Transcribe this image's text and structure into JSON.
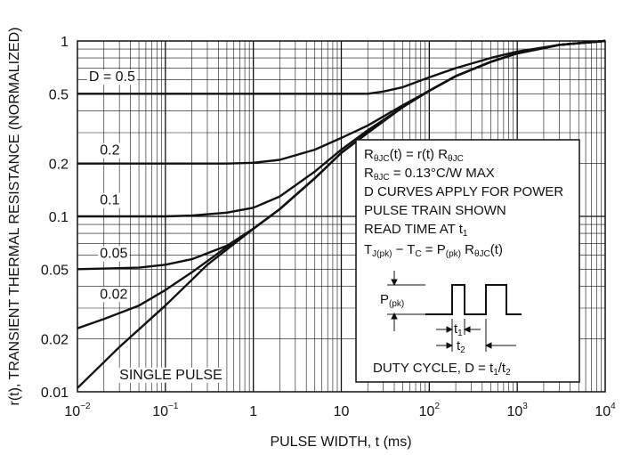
{
  "chart_data": {
    "type": "line",
    "x_scale": "log",
    "y_scale": "log",
    "xlabel": "PULSE WIDTH, t (ms)",
    "ylabel": "r(t), TRANSIENT THERMAL RESISTANCE (NORMALIZED)",
    "xlim": [
      0.01,
      10000
    ],
    "ylim": [
      0.01,
      1
    ],
    "x_ticks": [
      {
        "value": 0.01,
        "base": "10",
        "exp": "−2"
      },
      {
        "value": 0.1,
        "base": "10",
        "exp": "−1"
      },
      {
        "value": 1,
        "base": "1",
        "exp": ""
      },
      {
        "value": 10,
        "base": "10",
        "exp": ""
      },
      {
        "value": 100,
        "base": "10",
        "exp": "2"
      },
      {
        "value": 1000,
        "base": "10",
        "exp": "3"
      },
      {
        "value": 10000,
        "base": "10",
        "exp": "4"
      }
    ],
    "y_ticks": [
      {
        "value": 1,
        "label": "1"
      },
      {
        "value": 0.5,
        "label": "0.5"
      },
      {
        "value": 0.2,
        "label": "0.2"
      },
      {
        "value": 0.1,
        "label": "0.1"
      },
      {
        "value": 0.05,
        "label": "0.05"
      },
      {
        "value": 0.02,
        "label": "0.02"
      },
      {
        "value": 0.01,
        "label": "0.01"
      }
    ],
    "grid": true,
    "series": [
      {
        "name": "D = 0.5",
        "label_at": [
          0.0135,
          0.59
        ],
        "x": [
          0.01,
          1,
          10,
          20,
          30,
          50,
          100,
          200,
          500,
          1000,
          3000,
          10000
        ],
        "y": [
          0.5,
          0.5,
          0.5,
          0.5,
          0.515,
          0.545,
          0.62,
          0.7,
          0.8,
          0.87,
          0.95,
          1.0
        ]
      },
      {
        "name": "0.2",
        "label_at": [
          0.018,
          0.225
        ],
        "x": [
          0.01,
          0.5,
          1,
          2,
          5,
          10,
          20,
          50,
          100,
          200,
          500,
          1000,
          3000,
          10000
        ],
        "y": [
          0.2,
          0.2,
          0.202,
          0.21,
          0.24,
          0.28,
          0.33,
          0.43,
          0.52,
          0.63,
          0.76,
          0.85,
          0.95,
          1.0
        ]
      },
      {
        "name": "0.1",
        "label_at": [
          0.018,
          0.117
        ],
        "x": [
          0.01,
          0.1,
          0.2,
          0.5,
          1,
          2,
          5,
          10,
          20,
          50,
          100,
          200,
          500,
          1000,
          3000,
          10000
        ],
        "y": [
          0.1,
          0.1,
          0.101,
          0.105,
          0.112,
          0.13,
          0.18,
          0.24,
          0.31,
          0.42,
          0.52,
          0.63,
          0.76,
          0.85,
          0.95,
          1.0
        ]
      },
      {
        "name": "0.05",
        "label_at": [
          0.018,
          0.058
        ],
        "x": [
          0.01,
          0.05,
          0.1,
          0.2,
          0.5,
          1,
          2,
          5,
          10,
          20,
          50,
          100,
          200,
          500,
          1000,
          3000,
          10000
        ],
        "y": [
          0.05,
          0.051,
          0.053,
          0.057,
          0.068,
          0.085,
          0.11,
          0.165,
          0.23,
          0.3,
          0.42,
          0.52,
          0.63,
          0.76,
          0.85,
          0.95,
          1.0
        ]
      },
      {
        "name": "0.02",
        "label_at": [
          0.018,
          0.034
        ],
        "x": [
          0.01,
          0.02,
          0.05,
          0.1,
          0.2,
          0.5,
          1,
          2,
          5,
          10,
          20,
          50,
          100,
          200,
          500,
          1000,
          3000,
          10000
        ],
        "y": [
          0.023,
          0.026,
          0.031,
          0.038,
          0.048,
          0.067,
          0.085,
          0.11,
          0.165,
          0.23,
          0.3,
          0.42,
          0.52,
          0.63,
          0.76,
          0.85,
          0.95,
          1.0
        ]
      },
      {
        "name": "SINGLE PULSE",
        "label_at": [
          0.03,
          0.0118
        ],
        "x": [
          0.01,
          0.03,
          0.1,
          0.3,
          1,
          2,
          5,
          10,
          20,
          50,
          100,
          200,
          500,
          1000,
          3000,
          10000
        ],
        "y": [
          0.0105,
          0.018,
          0.031,
          0.053,
          0.085,
          0.11,
          0.165,
          0.23,
          0.3,
          0.42,
          0.52,
          0.63,
          0.76,
          0.85,
          0.95,
          1.0
        ]
      }
    ]
  },
  "annotation": {
    "line1": {
      "a": "R",
      "a_sub": "θJC",
      "b": "(t) = r(t) R",
      "b_sub": "θJC"
    },
    "line2": {
      "a": "R",
      "a_sub": "θJC",
      "b": " = 0.13°C/W MAX"
    },
    "line3": "D CURVES APPLY FOR POWER",
    "line4": "PULSE TRAIN SHOWN",
    "line5": {
      "a": "READ TIME AT t",
      "a_sub": "1"
    },
    "line6": {
      "a": "T",
      "a_sub": "J(pk)",
      "b": " − T",
      "b_sub": "C",
      "c": " = P",
      "c_sub": "(pk)",
      "d": " R",
      "d_sub": "θJC",
      "e": "(t)"
    },
    "pulse_label": {
      "a": "P",
      "a_sub": "(pk)"
    },
    "t1_label": {
      "a": "t",
      "a_sub": "1"
    },
    "t2_label": {
      "a": "t",
      "a_sub": "2"
    },
    "duty_cycle": {
      "a": "DUTY CYCLE, D = t",
      "a_sub": "1",
      "b": "/t",
      "b_sub": "2"
    }
  }
}
